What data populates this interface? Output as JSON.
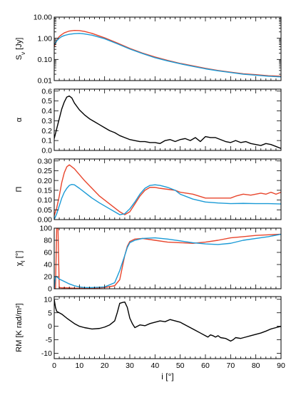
{
  "chart_data": {
    "type": "line",
    "colors": {
      "black": "#000000",
      "red": "#e8452c",
      "blue": "#1a9ad6"
    },
    "x_axis": {
      "label": "i [°]",
      "range": [
        0,
        90
      ],
      "ticks": [
        0,
        10,
        20,
        30,
        40,
        50,
        60,
        70,
        80,
        90
      ],
      "tick_labels": [
        "0",
        "10",
        "20",
        "30",
        "40",
        "50",
        "60",
        "70",
        "80",
        "90"
      ]
    },
    "panels": [
      {
        "id": "flux",
        "ylabel": "S_ν [Jy]",
        "scale": "log",
        "ylim": [
          0.01,
          10
        ],
        "ticks": [
          0.01,
          0.1,
          1,
          10
        ],
        "tick_labels": [
          "0.01",
          "0.10",
          "1.00",
          "10.00"
        ],
        "series": [
          {
            "color": "red",
            "x": [
              0,
              1,
              2,
              3,
              4,
              5,
              6,
              8,
              10,
              12,
              15,
              20,
              25,
              30,
              35,
              40,
              45,
              50,
              55,
              60,
              65,
              70,
              75,
              80,
              85,
              90
            ],
            "y": [
              0.4,
              0.8,
              1.2,
              1.5,
              1.8,
              2.0,
              2.2,
              2.35,
              2.3,
              2.1,
              1.7,
              1.05,
              0.6,
              0.33,
              0.2,
              0.13,
              0.09,
              0.065,
              0.05,
              0.038,
              0.03,
              0.025,
              0.021,
              0.019,
              0.017,
              0.016
            ]
          },
          {
            "color": "blue",
            "x": [
              0,
              1,
              2,
              3,
              4,
              5,
              6,
              8,
              10,
              12,
              15,
              20,
              25,
              30,
              35,
              40,
              45,
              50,
              55,
              60,
              65,
              70,
              75,
              80,
              85,
              90
            ],
            "y": [
              0.5,
              0.75,
              1.0,
              1.2,
              1.35,
              1.45,
              1.55,
              1.65,
              1.7,
              1.6,
              1.4,
              0.95,
              0.55,
              0.31,
              0.19,
              0.12,
              0.085,
              0.062,
              0.047,
              0.036,
              0.029,
              0.024,
              0.02,
              0.018,
              0.016,
              0.015
            ]
          }
        ]
      },
      {
        "id": "alpha",
        "ylabel": "α",
        "scale": "linear",
        "ylim": [
          0,
          0.62
        ],
        "ticks": [
          0.0,
          0.1,
          0.2,
          0.3,
          0.4,
          0.5,
          0.6
        ],
        "tick_labels": [
          "0.0",
          "0.1",
          "0.2",
          "0.3",
          "0.4",
          "0.5",
          "0.6"
        ],
        "series": [
          {
            "color": "black",
            "x": [
              0,
              1,
              2,
              3,
              4,
              5,
              6,
              7,
              8,
              10,
              12,
              14,
              16,
              18,
              20,
              22,
              24,
              26,
              28,
              30,
              32,
              34,
              36,
              38,
              40,
              42,
              44,
              46,
              48,
              50,
              52,
              54,
              56,
              58,
              60,
              62,
              64,
              66,
              68,
              70,
              72,
              74,
              76,
              78,
              80,
              82,
              84,
              86,
              88,
              90
            ],
            "y": [
              0.12,
              0.22,
              0.32,
              0.42,
              0.49,
              0.54,
              0.55,
              0.53,
              0.48,
              0.41,
              0.36,
              0.32,
              0.29,
              0.26,
              0.23,
              0.2,
              0.18,
              0.15,
              0.13,
              0.11,
              0.1,
              0.09,
              0.09,
              0.08,
              0.08,
              0.07,
              0.1,
              0.11,
              0.09,
              0.11,
              0.12,
              0.1,
              0.13,
              0.09,
              0.14,
              0.13,
              0.13,
              0.11,
              0.09,
              0.08,
              0.1,
              0.08,
              0.09,
              0.07,
              0.06,
              0.05,
              0.07,
              0.06,
              0.04,
              0.02
            ]
          }
        ]
      },
      {
        "id": "pol",
        "ylabel": "Π",
        "scale": "linear",
        "ylim": [
          0,
          0.31
        ],
        "ticks": [
          0.0,
          0.05,
          0.1,
          0.15,
          0.2,
          0.25,
          0.3
        ],
        "tick_labels": [
          "0.00",
          "0.05",
          "0.10",
          "0.15",
          "0.20",
          "0.25",
          "0.30"
        ],
        "series": [
          {
            "color": "red",
            "x": [
              0,
              1,
              2,
              3,
              4,
              5,
              6,
              7,
              8,
              10,
              12,
              15,
              18,
              20,
              22,
              24,
              26,
              28,
              30,
              32,
              34,
              36,
              38,
              40,
              42,
              45,
              48,
              50,
              55,
              60,
              65,
              70,
              72,
              75,
              78,
              80,
              82,
              84,
              86,
              88,
              90
            ],
            "y": [
              0.02,
              0.06,
              0.12,
              0.19,
              0.24,
              0.27,
              0.28,
              0.27,
              0.26,
              0.23,
              0.2,
              0.16,
              0.12,
              0.1,
              0.08,
              0.06,
              0.04,
              0.025,
              0.04,
              0.08,
              0.12,
              0.15,
              0.165,
              0.165,
              0.16,
              0.155,
              0.15,
              0.14,
              0.13,
              0.11,
              0.11,
              0.11,
              0.12,
              0.13,
              0.125,
              0.13,
              0.135,
              0.13,
              0.14,
              0.13,
              0.14
            ]
          },
          {
            "color": "blue",
            "x": [
              0,
              1,
              2,
              3,
              4,
              5,
              6,
              7,
              8,
              10,
              12,
              15,
              18,
              20,
              22,
              24,
              26,
              28,
              30,
              32,
              34,
              36,
              38,
              40,
              42,
              45,
              48,
              50,
              55,
              60,
              65,
              70,
              75,
              80,
              85,
              90
            ],
            "y": [
              0.0,
              0.03,
              0.07,
              0.11,
              0.14,
              0.16,
              0.175,
              0.18,
              0.178,
              0.16,
              0.14,
              0.11,
              0.085,
              0.07,
              0.055,
              0.04,
              0.025,
              0.03,
              0.055,
              0.09,
              0.13,
              0.16,
              0.175,
              0.178,
              0.175,
              0.165,
              0.15,
              0.13,
              0.105,
              0.09,
              0.085,
              0.082,
              0.083,
              0.082,
              0.082,
              0.08
            ]
          }
        ]
      },
      {
        "id": "chi",
        "ylabel": "χ_I [°]",
        "scale": "linear",
        "ylim": [
          0,
          100
        ],
        "ticks": [
          0,
          20,
          40,
          60,
          80,
          100
        ],
        "tick_labels": [
          "0",
          "20",
          "40",
          "60",
          "80",
          "100"
        ],
        "series": [
          {
            "color": "red",
            "x": [
              0,
              0.5,
              1.0,
              1.5,
              2,
              3,
              5,
              8,
              10,
              15,
              20,
              24,
              26,
              27,
              28,
              29,
              30,
              32,
              35,
              40,
              45,
              50,
              55,
              60,
              65,
              70,
              75,
              80,
              85,
              90
            ],
            "y": [
              0,
              0,
              100,
              100,
              2,
              1.5,
              1.5,
              1,
              0.8,
              1,
              2,
              5,
              15,
              35,
              55,
              70,
              78,
              82,
              83,
              80,
              77,
              76,
              75,
              77,
              80,
              84,
              86,
              88,
              89,
              90
            ]
          },
          {
            "color": "blue",
            "x": [
              0,
              0.5,
              1.0,
              1.5,
              2,
              4,
              6,
              8,
              10,
              12,
              15,
              20,
              24,
              26,
              28,
              29,
              30,
              32,
              35,
              40,
              45,
              50,
              55,
              60,
              65,
              70,
              75,
              80,
              85,
              90
            ],
            "y": [
              0,
              20,
              20,
              18,
              16,
              12,
              8,
              5,
              3,
              2,
              2,
              3,
              10,
              30,
              55,
              68,
              76,
              80,
              83,
              84,
              82,
              79,
              76,
              74,
              73,
              75,
              80,
              83,
              86,
              90
            ]
          }
        ]
      },
      {
        "id": "rm",
        "ylabel": "RM [K rad/m²]",
        "scale": "linear",
        "ylim": [
          -12,
          11
        ],
        "ticks": [
          -10,
          -5,
          0,
          5,
          10
        ],
        "tick_labels": [
          "-10",
          "-5",
          "0",
          "5",
          "10"
        ],
        "series": [
          {
            "color": "black",
            "x": [
              0,
              0.5,
              1,
              3,
              5,
              8,
              10,
              12,
              15,
              18,
              20,
              22,
              24,
              25,
              26,
              27,
              28,
              29,
              30,
              31,
              32,
              34,
              36,
              38,
              40,
              42,
              44,
              46,
              48,
              50,
              52,
              54,
              56,
              58,
              60,
              61,
              62,
              63,
              64,
              65,
              66,
              68,
              69,
              70,
              71,
              72,
              74,
              76,
              78,
              80,
              82,
              84,
              86,
              88,
              90
            ],
            "y": [
              10,
              7,
              5.5,
              4.5,
              3,
              1,
              0,
              -0.5,
              -1,
              -0.8,
              -0.3,
              0.5,
              2,
              5,
              8.5,
              8.8,
              9,
              7,
              3,
              1,
              -0.5,
              0.5,
              0.2,
              1,
              1.5,
              2,
              1.7,
              2.5,
              2,
              1.5,
              0.5,
              -0.5,
              -1.5,
              -2.5,
              -3.5,
              -4,
              -3.2,
              -3.5,
              -4,
              -3.5,
              -4.2,
              -4.5,
              -5,
              -5.5,
              -5,
              -4.2,
              -4.5,
              -4,
              -3.5,
              -3,
              -2.5,
              -1.8,
              -1,
              -0.5,
              0
            ]
          }
        ]
      }
    ]
  }
}
